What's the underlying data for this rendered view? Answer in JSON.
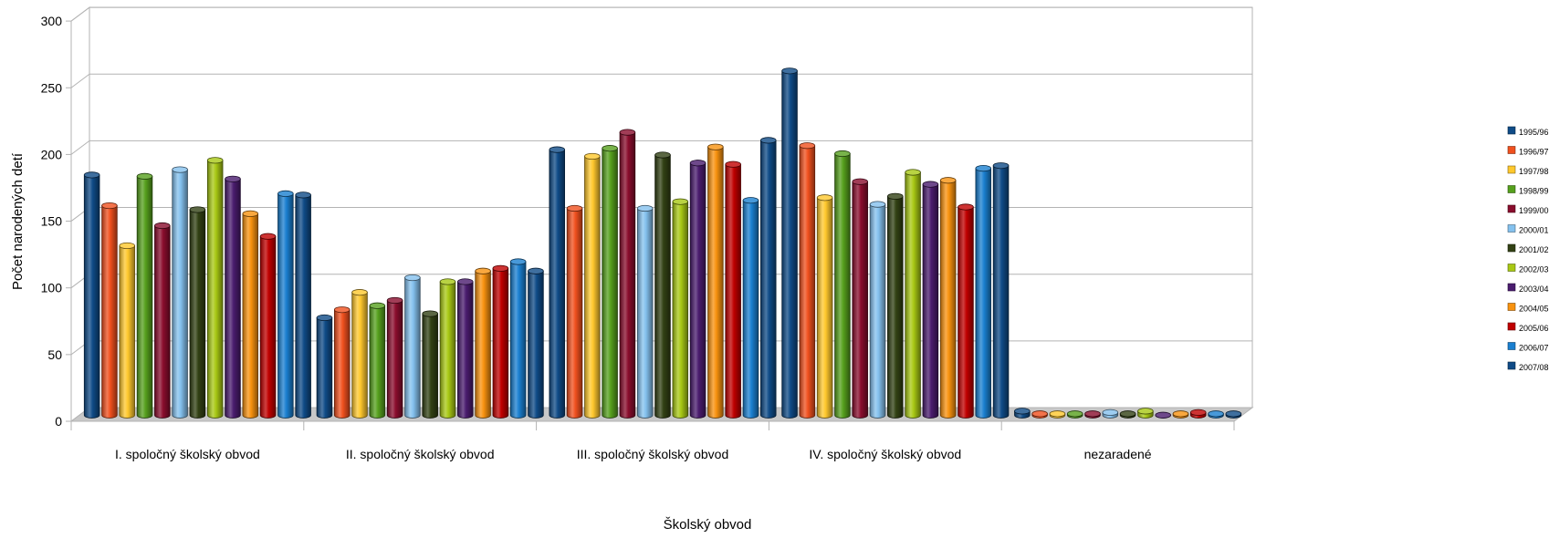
{
  "chart_data": {
    "type": "bar",
    "title": "",
    "xlabel": "Školský obvod",
    "ylabel": "Počet narodených detí",
    "ylim": [
      0,
      300
    ],
    "yticks": [
      0,
      50,
      100,
      150,
      200,
      250,
      300
    ],
    "grid": true,
    "legend_position": "right",
    "categories": [
      "I. spoločný školský obvod",
      "II. spoločný školský obvod",
      "III. spoločný školský obvod",
      "IV. spoločný školský obvod",
      "nezaradené"
    ],
    "series": [
      {
        "name": "1995/96",
        "color": "#0f4b87",
        "values": [
          180,
          73,
          199,
          258,
          3
        ]
      },
      {
        "name": "1996/97",
        "color": "#f0501e",
        "values": [
          157,
          79,
          155,
          202,
          1
        ]
      },
      {
        "name": "1997/98",
        "color": "#ffc82d",
        "values": [
          127,
          92,
          194,
          163,
          1
        ]
      },
      {
        "name": "1998/99",
        "color": "#56a01d",
        "values": [
          179,
          82,
          200,
          196,
          1
        ]
      },
      {
        "name": "1999/00",
        "color": "#8a0d2d",
        "values": [
          142,
          86,
          212,
          175,
          1
        ]
      },
      {
        "name": "2000/01",
        "color": "#84c1ee",
        "values": [
          184,
          103,
          155,
          158,
          2
        ]
      },
      {
        "name": "2001/02",
        "color": "#324114",
        "values": [
          154,
          76,
          195,
          164,
          1
        ]
      },
      {
        "name": "2002/03",
        "color": "#a8c814",
        "values": [
          191,
          100,
          160,
          182,
          3
        ]
      },
      {
        "name": "2003/04",
        "color": "#4a1c6e",
        "values": [
          177,
          100,
          189,
          173,
          0
        ]
      },
      {
        "name": "2004/05",
        "color": "#f8920f",
        "values": [
          151,
          108,
          201,
          176,
          1
        ]
      },
      {
        "name": "2005/06",
        "color": "#c00000",
        "values": [
          134,
          110,
          188,
          156,
          2
        ]
      },
      {
        "name": "2006/07",
        "color": "#1a7fd0",
        "values": [
          166,
          115,
          161,
          185,
          1
        ]
      },
      {
        "name": "2007/08",
        "color": "#0f4b87",
        "values": [
          165,
          108,
          206,
          187,
          1
        ]
      }
    ]
  }
}
